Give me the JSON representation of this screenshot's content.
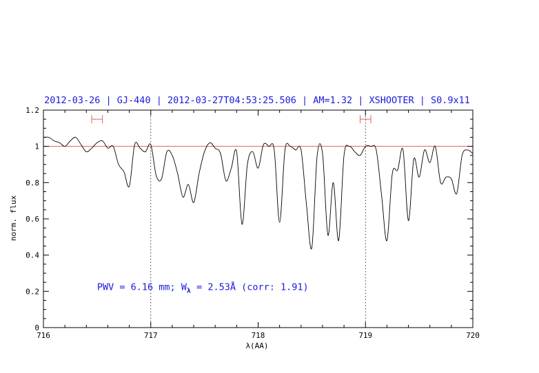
{
  "chart_data": {
    "type": "line",
    "title": "2012-03-26 | GJ-440 | 2012-03-27T04:53:25.506 | AM=1.32 | XSHOOTER | S0.9x11",
    "xlabel": "λ(AA)",
    "ylabel": "norm. flux",
    "xlim": [
      716,
      720
    ],
    "ylim": [
      0,
      1.2
    ],
    "x_ticks": [
      "716",
      "717",
      "718",
      "719",
      "720"
    ],
    "y_ticks": [
      "0",
      "0.2",
      "0.4",
      "0.6",
      "0.8",
      "1",
      "1.2"
    ],
    "reference_line": {
      "y": 1.0,
      "color": "#e06060"
    },
    "vertical_markers": [
      717.0,
      719.0
    ],
    "intervals": [
      {
        "x1": 716.45,
        "x2": 716.55,
        "y": 1.15,
        "color": "#e06060"
      },
      {
        "x1": 718.95,
        "x2": 719.05,
        "y": 1.15,
        "color": "#e06060"
      }
    ],
    "annotation": {
      "before": "PWV = 6.16 mm; W",
      "subscript": "λ",
      "after": " = 2.53Å (corr: 1.91)",
      "x": 716.5,
      "y": 0.2,
      "color": "#1a1ae0"
    },
    "series": [
      {
        "color": "#000000",
        "x": [
          716.0,
          716.05,
          716.1,
          716.15,
          716.2,
          716.25,
          716.3,
          716.35,
          716.4,
          716.45,
          716.5,
          716.55,
          716.6,
          716.65,
          716.7,
          716.75,
          716.8,
          716.85,
          716.9,
          716.95,
          717.0,
          717.05,
          717.1,
          717.15,
          717.2,
          717.25,
          717.3,
          717.35,
          717.4,
          717.45,
          717.5,
          717.55,
          717.6,
          717.65,
          717.7,
          717.75,
          717.8,
          717.85,
          717.9,
          717.95,
          718.0,
          718.05,
          718.1,
          718.15,
          718.2,
          718.25,
          718.3,
          718.35,
          718.4,
          718.45,
          718.5,
          718.55,
          718.6,
          718.65,
          718.7,
          718.75,
          718.8,
          718.85,
          718.9,
          718.95,
          719.0,
          719.05,
          719.1,
          719.15,
          719.2,
          719.25,
          719.3,
          719.35,
          719.4,
          719.45,
          719.5,
          719.55,
          719.6,
          719.65,
          719.7,
          719.75,
          719.8,
          719.85,
          719.9,
          719.95,
          720.0
        ],
        "y": [
          1.05,
          1.05,
          1.03,
          1.02,
          1.0,
          1.03,
          1.05,
          1.01,
          0.97,
          0.99,
          1.02,
          1.03,
          0.99,
          1.0,
          0.9,
          0.86,
          0.78,
          1.01,
          0.99,
          0.97,
          1.01,
          0.84,
          0.82,
          0.97,
          0.95,
          0.85,
          0.72,
          0.79,
          0.69,
          0.85,
          0.97,
          1.02,
          0.99,
          0.96,
          0.81,
          0.88,
          0.97,
          0.57,
          0.9,
          0.97,
          0.88,
          1.01,
          1.0,
          0.98,
          0.58,
          0.98,
          1.0,
          0.98,
          0.98,
          0.68,
          0.44,
          0.95,
          0.96,
          0.51,
          0.8,
          0.48,
          0.95,
          1.0,
          0.97,
          0.95,
          1.0,
          1.0,
          0.98,
          0.73,
          0.48,
          0.85,
          0.87,
          0.98,
          0.59,
          0.93,
          0.83,
          0.98,
          0.91,
          1.0,
          0.8,
          0.83,
          0.82,
          0.74,
          0.95,
          0.98,
          0.96
        ]
      }
    ]
  }
}
